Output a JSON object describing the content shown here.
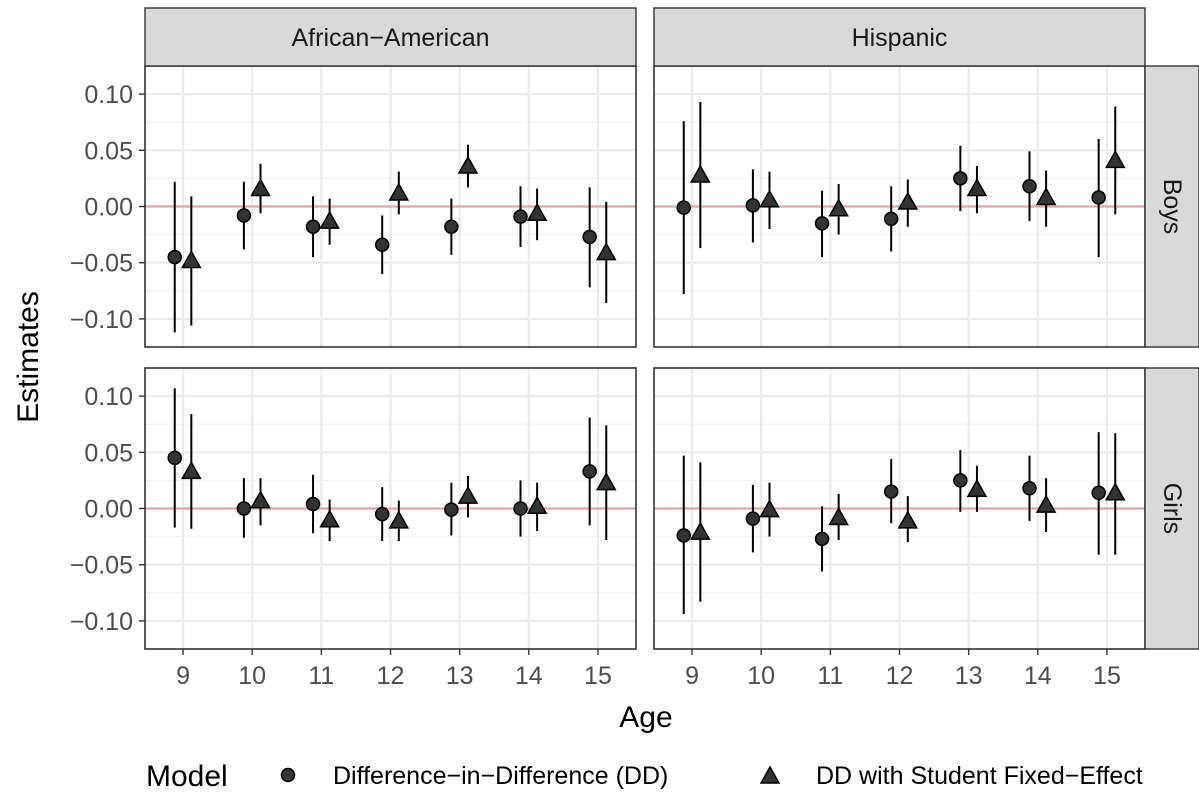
{
  "chart_data": {
    "type": "scatter",
    "subtype": "faceted point estimates with confidence intervals",
    "xlabel": "Age",
    "ylabel": "Estimates",
    "x": [
      9,
      10,
      11,
      12,
      13,
      14,
      15
    ],
    "ylim": [
      -0.125,
      0.125
    ],
    "yticks": [
      -0.1,
      -0.05,
      0.0,
      0.05,
      0.1
    ],
    "ytick_labels": [
      "−0.10",
      "−0.05",
      "0.00",
      "0.05",
      "0.10"
    ],
    "reference_line": {
      "y": 0,
      "color": "#e8a5a5"
    },
    "grid": true,
    "columns": [
      "African−American",
      "Hispanic"
    ],
    "rows": [
      "Boys",
      "Girls"
    ],
    "legend": {
      "title": "Model",
      "placement": "bottom",
      "entries": [
        {
          "label": "Difference−in−Difference (DD)",
          "shape": "circle"
        },
        {
          "label": "DD with Student Fixed−Effect",
          "shape": "triangle"
        }
      ]
    },
    "series": [
      {
        "name": "Difference−in−Difference (DD)",
        "shape": "circle",
        "color": "#333333"
      },
      {
        "name": "DD with Student Fixed−Effect",
        "shape": "triangle",
        "color": "#333333"
      }
    ],
    "panels": [
      {
        "column": "African−American",
        "row": "Boys",
        "dd": [
          [
            -0.045,
            -0.112,
            0.022
          ],
          [
            -0.008,
            -0.038,
            0.022
          ],
          [
            -0.018,
            -0.045,
            0.009
          ],
          [
            -0.034,
            -0.06,
            -0.008
          ],
          [
            -0.018,
            -0.043,
            0.007
          ],
          [
            -0.009,
            -0.036,
            0.018
          ],
          [
            -0.027,
            -0.072,
            0.017
          ]
        ],
        "dd_fe": [
          [
            -0.048,
            -0.106,
            0.009
          ],
          [
            0.016,
            -0.006,
            0.038
          ],
          [
            -0.013,
            -0.034,
            0.007
          ],
          [
            0.012,
            -0.007,
            0.031
          ],
          [
            0.036,
            0.017,
            0.055
          ],
          [
            -0.006,
            -0.03,
            0.016
          ],
          [
            -0.041,
            -0.086,
            0.004
          ]
        ]
      },
      {
        "column": "Hispanic",
        "row": "Boys",
        "dd": [
          [
            -0.001,
            -0.078,
            0.076
          ],
          [
            0.001,
            -0.032,
            0.033
          ],
          [
            -0.015,
            -0.045,
            0.014
          ],
          [
            -0.011,
            -0.04,
            0.018
          ],
          [
            0.025,
            -0.004,
            0.054
          ],
          [
            0.018,
            -0.013,
            0.049
          ],
          [
            0.008,
            -0.045,
            0.06
          ]
        ],
        "dd_fe": [
          [
            0.028,
            -0.037,
            0.093
          ],
          [
            0.006,
            -0.02,
            0.031
          ],
          [
            -0.002,
            -0.025,
            0.02
          ],
          [
            0.004,
            -0.018,
            0.024
          ],
          [
            0.016,
            -0.006,
            0.036
          ],
          [
            0.008,
            -0.018,
            0.032
          ],
          [
            0.041,
            -0.007,
            0.089
          ]
        ]
      },
      {
        "column": "African−American",
        "row": "Girls",
        "dd": [
          [
            0.045,
            -0.017,
            0.107
          ],
          [
            0.0,
            -0.026,
            0.027
          ],
          [
            0.004,
            -0.022,
            0.03
          ],
          [
            -0.005,
            -0.029,
            0.019
          ],
          [
            -0.001,
            -0.024,
            0.023
          ],
          [
            0.0,
            -0.025,
            0.025
          ],
          [
            0.033,
            -0.015,
            0.081
          ]
        ],
        "dd_fe": [
          [
            0.033,
            -0.018,
            0.084
          ],
          [
            0.007,
            -0.015,
            0.027
          ],
          [
            -0.01,
            -0.029,
            0.008
          ],
          [
            -0.011,
            -0.029,
            0.007
          ],
          [
            0.011,
            -0.008,
            0.029
          ],
          [
            0.002,
            -0.02,
            0.023
          ],
          [
            0.023,
            -0.028,
            0.074
          ]
        ]
      },
      {
        "column": "Hispanic",
        "row": "Girls",
        "dd": [
          [
            -0.024,
            -0.094,
            0.047
          ],
          [
            -0.009,
            -0.039,
            0.021
          ],
          [
            -0.027,
            -0.056,
            0.002
          ],
          [
            0.015,
            -0.013,
            0.044
          ],
          [
            0.025,
            -0.003,
            0.052
          ],
          [
            0.018,
            -0.011,
            0.047
          ],
          [
            0.014,
            -0.041,
            0.068
          ]
        ],
        "dd_fe": [
          [
            -0.021,
            -0.083,
            0.041
          ],
          [
            -0.001,
            -0.025,
            0.023
          ],
          [
            -0.008,
            -0.028,
            0.013
          ],
          [
            -0.011,
            -0.03,
            0.011
          ],
          [
            0.017,
            -0.003,
            0.038
          ],
          [
            0.003,
            -0.021,
            0.027
          ],
          [
            0.014,
            -0.041,
            0.067
          ]
        ]
      }
    ]
  }
}
